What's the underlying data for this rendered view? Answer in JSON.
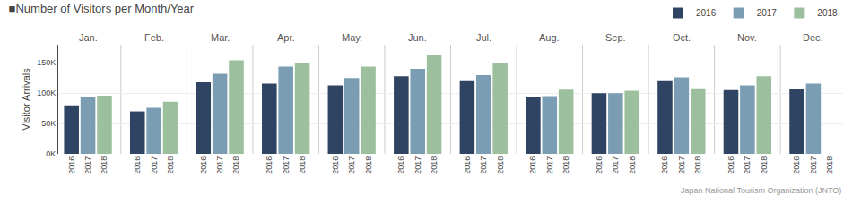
{
  "chart_data": {
    "type": "bar",
    "title": "■Number of Visitors per Month/Year",
    "ylabel": "Visitor Arrivals",
    "annotations": [
      "Japan National Tourism Organization (JNTO)"
    ],
    "categories": [
      "Jan.",
      "Feb.",
      "Mar.",
      "Apr.",
      "May.",
      "Jun.",
      "Jul.",
      "Aug.",
      "Sep.",
      "Oct.",
      "Nov.",
      "Dec."
    ],
    "series": [
      {
        "name": "2016",
        "color": "#2e4462",
        "values": [
          80000,
          70000,
          118000,
          116000,
          113000,
          128000,
          120000,
          93000,
          100000,
          120000,
          105000,
          107000
        ]
      },
      {
        "name": "2017",
        "color": "#7a9db3",
        "values": [
          94000,
          76000,
          132000,
          144000,
          125000,
          140000,
          130000,
          95000,
          100000,
          126000,
          113000,
          116000
        ]
      },
      {
        "name": "2018",
        "color": "#9cbf9d",
        "values": [
          96000,
          86000,
          154000,
          150000,
          144000,
          163000,
          150000,
          106000,
          104000,
          108000,
          128000,
          null
        ]
      }
    ],
    "ylim": [
      0,
      180000
    ],
    "yticks": [
      {
        "value": 0,
        "label": "0K"
      },
      {
        "value": 50000,
        "label": "50K"
      },
      {
        "value": 100000,
        "label": "100K"
      },
      {
        "value": 150000,
        "label": "150K"
      }
    ],
    "grid": true,
    "legend": "upper right"
  }
}
